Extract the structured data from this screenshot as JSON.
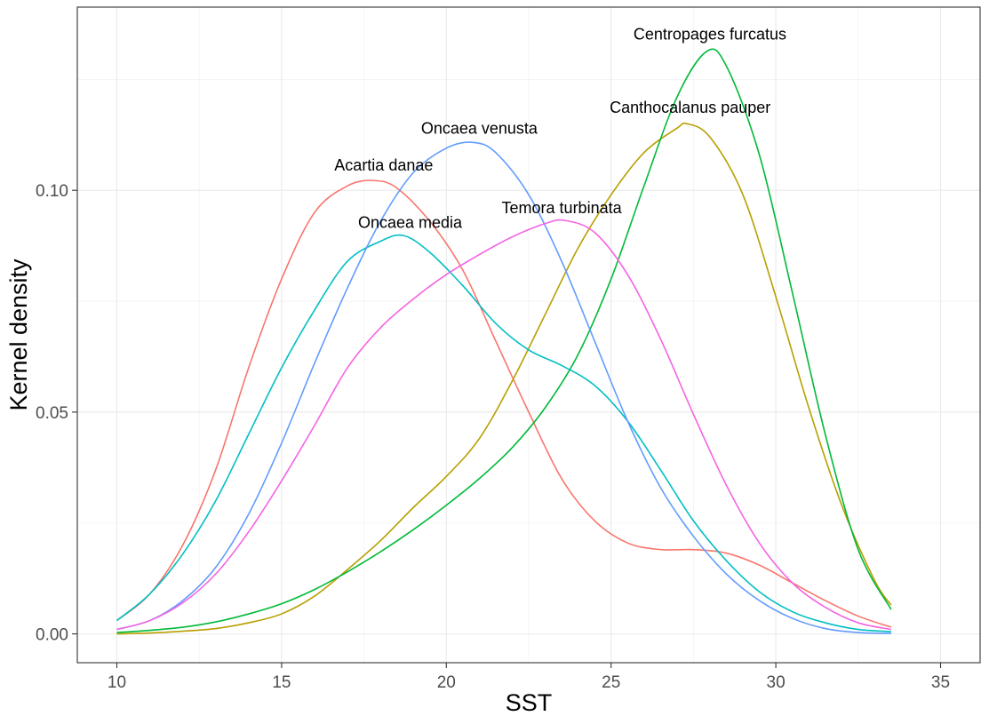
{
  "chart_data": {
    "type": "line",
    "title": "",
    "xlabel": "SST",
    "ylabel": "Kernel density",
    "xlim": [
      8.8,
      36.2
    ],
    "ylim": [
      -0.0065,
      0.1413
    ],
    "x_ticks": [
      10,
      15,
      20,
      25,
      30,
      35
    ],
    "y_ticks": [
      0,
      0.05,
      0.1
    ],
    "x_tick_labels": [
      "10",
      "15",
      "20",
      "25",
      "30",
      "35"
    ],
    "y_tick_labels": [
      "0.00",
      "0.05",
      "0.10"
    ],
    "grid": true,
    "legend": "none",
    "series": [
      {
        "name": "Acartia danae",
        "color": "#F8766D",
        "label_pos": [
          18.1,
          0.1045
        ],
        "points": [
          [
            10,
            0.003
          ],
          [
            11,
            0.009
          ],
          [
            12,
            0.02
          ],
          [
            13,
            0.037
          ],
          [
            14,
            0.06
          ],
          [
            15,
            0.08
          ],
          [
            16,
            0.095
          ],
          [
            17,
            0.101
          ],
          [
            17.8,
            0.1022
          ],
          [
            18.5,
            0.1005
          ],
          [
            19.5,
            0.093
          ],
          [
            20.5,
            0.082
          ],
          [
            21.5,
            0.066
          ],
          [
            22.5,
            0.05
          ],
          [
            23.5,
            0.035
          ],
          [
            24.5,
            0.0255
          ],
          [
            25.5,
            0.0205
          ],
          [
            26.5,
            0.019
          ],
          [
            27.5,
            0.019
          ],
          [
            28.5,
            0.0182
          ],
          [
            29.5,
            0.0155
          ],
          [
            30.5,
            0.0115
          ],
          [
            31.5,
            0.0075
          ],
          [
            32.5,
            0.004
          ],
          [
            33.5,
            0.0015
          ]
        ]
      },
      {
        "name": "Canthocalanus pauper",
        "color": "#B79F00",
        "label_pos": [
          27.4,
          0.1175
        ],
        "points": [
          [
            10,
            0.0
          ],
          [
            11,
            0.0002
          ],
          [
            12,
            0.0006
          ],
          [
            13,
            0.0012
          ],
          [
            14,
            0.0025
          ],
          [
            15,
            0.0045
          ],
          [
            16,
            0.0085
          ],
          [
            17,
            0.0145
          ],
          [
            18,
            0.021
          ],
          [
            19,
            0.0285
          ],
          [
            20,
            0.0355
          ],
          [
            21,
            0.044
          ],
          [
            22,
            0.057
          ],
          [
            23,
            0.072
          ],
          [
            24,
            0.087
          ],
          [
            25,
            0.099
          ],
          [
            26,
            0.1085
          ],
          [
            27,
            0.114
          ],
          [
            27.3,
            0.115
          ],
          [
            28,
            0.112
          ],
          [
            29,
            0.099
          ],
          [
            30,
            0.076
          ],
          [
            31,
            0.051
          ],
          [
            32,
            0.029
          ],
          [
            33,
            0.012
          ],
          [
            33.5,
            0.0065
          ]
        ]
      },
      {
        "name": "Centropages furcatus",
        "color": "#00BA38",
        "label_pos": [
          28.0,
          0.134
        ],
        "points": [
          [
            10,
            0.0003
          ],
          [
            11,
            0.0008
          ],
          [
            12,
            0.0015
          ],
          [
            13,
            0.0027
          ],
          [
            14,
            0.0045
          ],
          [
            15,
            0.0068
          ],
          [
            16,
            0.01
          ],
          [
            17,
            0.014
          ],
          [
            18,
            0.0185
          ],
          [
            19,
            0.0235
          ],
          [
            20,
            0.029
          ],
          [
            21,
            0.035
          ],
          [
            22,
            0.042
          ],
          [
            23,
            0.051
          ],
          [
            24,
            0.063
          ],
          [
            25,
            0.08
          ],
          [
            26,
            0.101
          ],
          [
            27,
            0.121
          ],
          [
            27.9,
            0.1313
          ],
          [
            28.5,
            0.128
          ],
          [
            29.5,
            0.108
          ],
          [
            30.5,
            0.077
          ],
          [
            31.5,
            0.045
          ],
          [
            32.5,
            0.019
          ],
          [
            33.5,
            0.0055
          ]
        ]
      },
      {
        "name": "Oncaea media",
        "color": "#00BFC4",
        "label_pos": [
          18.9,
          0.0915
        ],
        "points": [
          [
            10,
            0.003
          ],
          [
            11,
            0.009
          ],
          [
            12,
            0.018
          ],
          [
            13,
            0.03
          ],
          [
            14,
            0.045
          ],
          [
            15,
            0.06
          ],
          [
            16,
            0.073
          ],
          [
            17,
            0.084
          ],
          [
            18,
            0.0885
          ],
          [
            18.7,
            0.0898
          ],
          [
            19.5,
            0.086
          ],
          [
            20.5,
            0.0785
          ],
          [
            21.5,
            0.07
          ],
          [
            22.5,
            0.064
          ],
          [
            23.5,
            0.0605
          ],
          [
            24.5,
            0.056
          ],
          [
            25.5,
            0.048
          ],
          [
            26.5,
            0.037
          ],
          [
            27.5,
            0.0255
          ],
          [
            28.5,
            0.0165
          ],
          [
            29.5,
            0.0095
          ],
          [
            30.5,
            0.005
          ],
          [
            31.5,
            0.0025
          ],
          [
            32.5,
            0.001
          ],
          [
            33.5,
            0.0005
          ]
        ]
      },
      {
        "name": "Oncaea venusta",
        "color": "#619CFF",
        "label_pos": [
          21.0,
          0.1128
        ],
        "points": [
          [
            10,
            0.001
          ],
          [
            11,
            0.003
          ],
          [
            12,
            0.0075
          ],
          [
            13,
            0.015
          ],
          [
            14,
            0.027
          ],
          [
            15,
            0.043
          ],
          [
            16,
            0.061
          ],
          [
            17,
            0.078
          ],
          [
            18,
            0.093
          ],
          [
            19,
            0.104
          ],
          [
            20,
            0.1095
          ],
          [
            20.8,
            0.1108
          ],
          [
            21.5,
            0.1085
          ],
          [
            22.5,
            0.099
          ],
          [
            23.5,
            0.084
          ],
          [
            24.5,
            0.066
          ],
          [
            25.5,
            0.048
          ],
          [
            26.5,
            0.033
          ],
          [
            27.5,
            0.022
          ],
          [
            28.5,
            0.0135
          ],
          [
            29.5,
            0.0075
          ],
          [
            30.5,
            0.0035
          ],
          [
            31.5,
            0.0012
          ],
          [
            32.5,
            0.0003
          ],
          [
            33.5,
            0.0001
          ]
        ]
      },
      {
        "name": "Temora turbinata",
        "color": "#F564E3",
        "label_pos": [
          23.5,
          0.0948
        ],
        "points": [
          [
            10,
            0.001
          ],
          [
            11,
            0.003
          ],
          [
            12,
            0.007
          ],
          [
            13,
            0.0135
          ],
          [
            14,
            0.023
          ],
          [
            15,
            0.0345
          ],
          [
            16,
            0.047
          ],
          [
            17,
            0.06
          ],
          [
            18,
            0.069
          ],
          [
            19,
            0.0755
          ],
          [
            20,
            0.081
          ],
          [
            21,
            0.0855
          ],
          [
            22,
            0.0895
          ],
          [
            23,
            0.0925
          ],
          [
            23.6,
            0.0932
          ],
          [
            24.5,
            0.0905
          ],
          [
            25.5,
            0.081
          ],
          [
            26.5,
            0.0665
          ],
          [
            27.5,
            0.0495
          ],
          [
            28.5,
            0.0335
          ],
          [
            29.5,
            0.0205
          ],
          [
            30.5,
            0.0115
          ],
          [
            31.5,
            0.006
          ],
          [
            32.5,
            0.0025
          ],
          [
            33.5,
            0.001
          ]
        ]
      }
    ]
  }
}
